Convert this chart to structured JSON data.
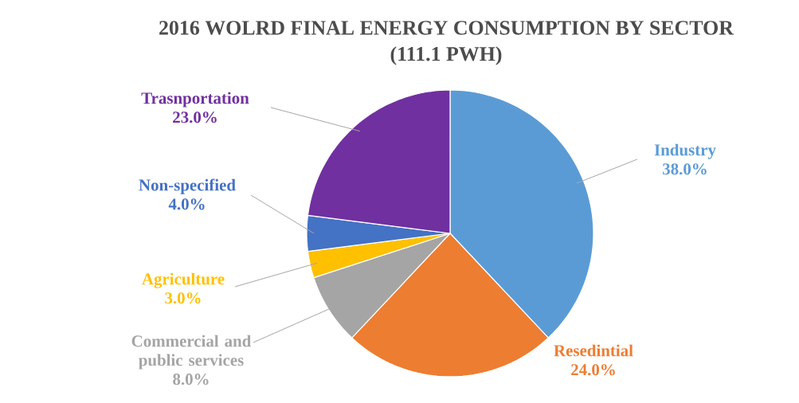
{
  "chart_data": {
    "type": "pie",
    "title": "2016 WOLRD FINAL ENERGY CONSUMPTION BY SECTOR",
    "subtitle": "(111.1 PWH)",
    "categories": [
      "Industry",
      "Resedintial",
      "Commercial and public services",
      "Agriculture",
      "Non-specified",
      "Trasnportation"
    ],
    "values": [
      38,
      24,
      8,
      3,
      4,
      23
    ],
    "value_labels": [
      "38.0%",
      "24.0%",
      "8.0%",
      "3.0%",
      "4.0%",
      "23.0%"
    ],
    "colors": [
      "#5b9bd5",
      "#ed7d31",
      "#a5a5a5",
      "#ffc000",
      "#4472c4",
      "#7030a0"
    ]
  }
}
